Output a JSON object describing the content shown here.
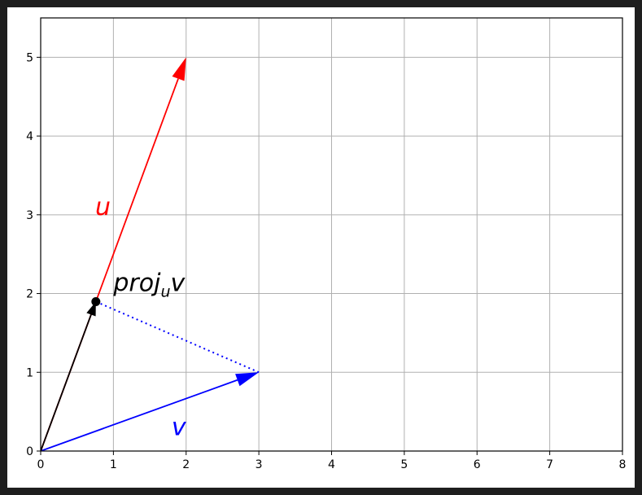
{
  "chart_data": {
    "type": "vector-plot",
    "title": "",
    "xlabel": "",
    "ylabel": "",
    "xlim": [
      0,
      8
    ],
    "ylim": [
      0,
      5.5
    ],
    "x_ticks": [
      0,
      1,
      2,
      3,
      4,
      5,
      6,
      7,
      8
    ],
    "y_ticks": [
      0,
      1,
      2,
      3,
      4,
      5
    ],
    "grid": true,
    "vectors": [
      {
        "id": "u",
        "label": "u",
        "origin": [
          0,
          0
        ],
        "tip": [
          2,
          5
        ],
        "color": "#ff0000",
        "label_pos": [
          0.75,
          3.0
        ]
      },
      {
        "id": "v",
        "label": "v",
        "origin": [
          0,
          0
        ],
        "tip": [
          3,
          1
        ],
        "color": "#0000ff",
        "label_pos": [
          1.8,
          0.2
        ]
      },
      {
        "id": "proj",
        "label": "",
        "origin": [
          0,
          0
        ],
        "tip": [
          0.759,
          1.897
        ],
        "color": "#000000"
      }
    ],
    "dotted_line": {
      "from": [
        3,
        1
      ],
      "to": [
        0.759,
        1.897
      ],
      "color": "#0000ff"
    },
    "point": {
      "at": [
        0.759,
        1.897
      ],
      "color": "#000000"
    },
    "annotation": {
      "text_main": "proj",
      "text_sub": "u",
      "text_tail": "v",
      "at": [
        1.0,
        2.0
      ]
    }
  }
}
